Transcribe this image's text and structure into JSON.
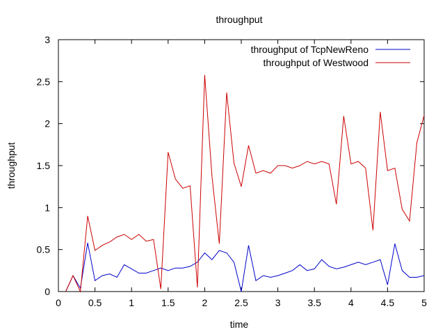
{
  "chart_data": {
    "type": "line",
    "title": "throughput",
    "xlabel": "time",
    "ylabel": "throughput",
    "xlim": [
      0,
      5
    ],
    "ylim": [
      0,
      3
    ],
    "xticks": [
      0,
      0.5,
      1,
      1.5,
      2,
      2.5,
      3,
      3.5,
      4,
      4.5,
      5
    ],
    "xtick_labels": [
      "0",
      "0.5",
      "1",
      "1.5",
      "2",
      "2.5",
      "3",
      "3.5",
      "4",
      "4.5",
      "5"
    ],
    "yticks": [
      0,
      0.5,
      1,
      1.5,
      2,
      2.5,
      3
    ],
    "ytick_labels": [
      "0",
      "0.5",
      "1",
      "1.5",
      "2",
      "2.5",
      "3"
    ],
    "grid": false,
    "legend_position": "top-right",
    "x": [
      0.1,
      0.2,
      0.3,
      0.4,
      0.5,
      0.6,
      0.7,
      0.8,
      0.9,
      1.0,
      1.1,
      1.2,
      1.3,
      1.4,
      1.5,
      1.6,
      1.7,
      1.8,
      1.9,
      2.0,
      2.1,
      2.2,
      2.3,
      2.4,
      2.5,
      2.6,
      2.7,
      2.8,
      2.9,
      3.0,
      3.1,
      3.2,
      3.3,
      3.4,
      3.5,
      3.6,
      3.7,
      3.8,
      3.9,
      4.0,
      4.1,
      4.2,
      4.3,
      4.4,
      4.5,
      4.6,
      4.7,
      4.8,
      4.9,
      5.0
    ],
    "series": [
      {
        "name": "throughput of TcpNewReno",
        "color": "#0000cc",
        "values": [
          0,
          0.19,
          0.04,
          0.58,
          0.13,
          0.19,
          0.21,
          0.17,
          0.32,
          0.27,
          0.22,
          0.22,
          0.25,
          0.28,
          0.25,
          0.28,
          0.28,
          0.3,
          0.35,
          0.46,
          0.38,
          0.49,
          0.46,
          0.35,
          0,
          0.55,
          0.13,
          0.19,
          0.17,
          0.19,
          0.22,
          0.25,
          0.32,
          0.25,
          0.27,
          0.38,
          0.3,
          0.27,
          0.29,
          0.32,
          0.35,
          0.32,
          0.35,
          0.38,
          0.08,
          0.57,
          0.25,
          0.17,
          0.17,
          0.19
        ]
      },
      {
        "name": "throughput of Westwood",
        "color": "#cc0000",
        "values": [
          0,
          0.19,
          0,
          0.9,
          0.49,
          0.55,
          0.59,
          0.65,
          0.68,
          0.62,
          0.68,
          0.6,
          0.62,
          0.03,
          1.66,
          1.34,
          1.23,
          1.26,
          0.05,
          2.58,
          1.37,
          0.57,
          2.37,
          1.53,
          1.25,
          1.74,
          1.41,
          1.44,
          1.41,
          1.5,
          1.5,
          1.47,
          1.5,
          1.55,
          1.52,
          1.55,
          1.52,
          1.04,
          2.09,
          1.52,
          1.55,
          1.47,
          0.73,
          2.14,
          1.44,
          1.47,
          0.98,
          0.84,
          1.77,
          2.1
        ]
      }
    ]
  }
}
